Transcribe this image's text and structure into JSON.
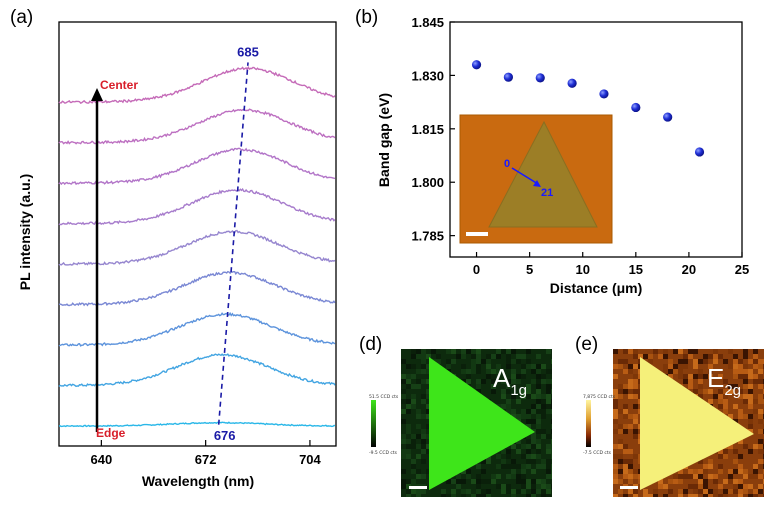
{
  "chart_data": [
    {
      "panel": "(a)",
      "type": "line",
      "xlabel": "Wavelength (nm)",
      "ylabel": "PL intensity (a.u.)",
      "xlim": [
        627,
        712
      ],
      "xticks": [
        "640",
        "672",
        "704"
      ],
      "annotations": {
        "top": "Center",
        "bottom": "Edge",
        "peak_top": "685",
        "peak_bottom": "676"
      },
      "series": [
        {
          "peak_nm": 676.0,
          "amplitude": 0.06,
          "color": "#29b7e8"
        },
        {
          "peak_nm": 677.1,
          "amplitude": 0.55,
          "color": "#43a5e2"
        },
        {
          "peak_nm": 678.2,
          "amplitude": 0.55,
          "color": "#5c93dc"
        },
        {
          "peak_nm": 679.4,
          "amplitude": 0.57,
          "color": "#7a88d4"
        },
        {
          "peak_nm": 680.5,
          "amplitude": 0.58,
          "color": "#9686cf"
        },
        {
          "peak_nm": 681.6,
          "amplitude": 0.6,
          "color": "#a77ccc"
        },
        {
          "peak_nm": 682.7,
          "amplitude": 0.6,
          "color": "#b275c8"
        },
        {
          "peak_nm": 683.9,
          "amplitude": 0.58,
          "color": "#bd70c1"
        },
        {
          "peak_nm": 685.0,
          "amplitude": 0.6,
          "color": "#c56bb8"
        }
      ]
    },
    {
      "panel": "(b)",
      "type": "scatter",
      "xlabel": "Distance (μm)",
      "ylabel": "Band gap (eV)",
      "xlim": [
        -2.5,
        25
      ],
      "ylim": [
        1.779,
        1.845
      ],
      "xticks": [
        0,
        5,
        10,
        15,
        20,
        25
      ],
      "yticks": [
        "1.785",
        "1.800",
        "1.815",
        "1.830",
        "1.845"
      ],
      "x": [
        0,
        3,
        6,
        9,
        12,
        15,
        18,
        21
      ],
      "y": [
        1.833,
        1.8295,
        1.8293,
        1.8278,
        1.8248,
        1.821,
        1.8183,
        1.8085
      ],
      "marker_color": "#1f2fd6",
      "inset": {
        "start_label": "0",
        "end_label": "21"
      }
    }
  ],
  "maps": [
    {
      "panel": "(d)",
      "label_main": "A",
      "label_sub": "1g",
      "colorbar_max": "51.5 CCD cts",
      "colorbar_min": "-9.5 CCD cts",
      "triangle_color": "#3ee51a",
      "background_color": "#0d2a0d"
    },
    {
      "panel": "(e)",
      "label_main": "E",
      "label_sub": "2g",
      "colorbar_max": "7,875 CCD cts",
      "colorbar_min": "-7.5 CCD cts",
      "triangle_color": "#f5f07a",
      "background_color": "#8a3e0c"
    }
  ]
}
